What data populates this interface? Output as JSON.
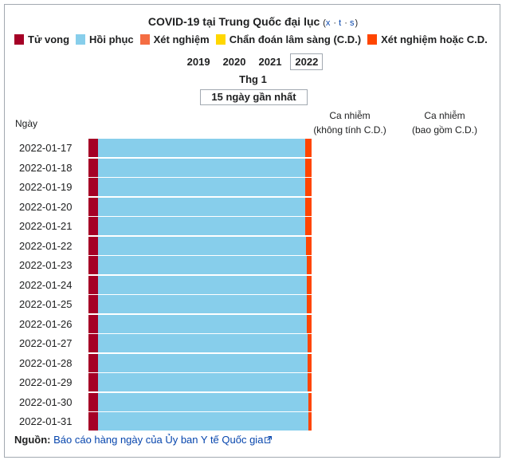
{
  "title": "COVID-19 tại Trung Quốc đại lục",
  "nav": {
    "open": "(",
    "links": [
      "x",
      "t",
      "s"
    ],
    "sep": " · ",
    "close": ")"
  },
  "legend": [
    {
      "label": "Tử vong",
      "color": "#a50026"
    },
    {
      "label": "Hồi phục",
      "color": "#87ceeb"
    },
    {
      "label": "Xét nghiệm",
      "color": "#f46d43"
    },
    {
      "label": "Chẩn đoán lâm sàng (C.D.)",
      "color": "#ffd700"
    },
    {
      "label": "Xét nghiệm hoặc C.D.",
      "color": "#ff4500"
    }
  ],
  "years": [
    "2019",
    "2020",
    "2021",
    "2022"
  ],
  "active_year": "2022",
  "month": "Thg 1",
  "range_label": "15 ngày gần nhất",
  "headers": {
    "day": "Ngày",
    "col1_line1": "Ca nhiễm",
    "col1_line2": "(không tính C.D.)",
    "col2_line1": "Ca nhiễm",
    "col2_line2": "(bao gồm C.D.)"
  },
  "chart_data": {
    "type": "bar",
    "stacked": true,
    "orientation": "horizontal",
    "categories": [
      "2022-01-17",
      "2022-01-18",
      "2022-01-19",
      "2022-01-20",
      "2022-01-21",
      "2022-01-22",
      "2022-01-23",
      "2022-01-24",
      "2022-01-25",
      "2022-01-26",
      "2022-01-27",
      "2022-01-28",
      "2022-01-29",
      "2022-01-30",
      "2022-01-31"
    ],
    "series": [
      {
        "name": "Tử vong",
        "values": [
          4.3,
          4.3,
          4.3,
          4.3,
          4.3,
          4.3,
          4.3,
          4.3,
          4.3,
          4.3,
          4.3,
          4.3,
          4.3,
          4.3,
          4.3
        ]
      },
      {
        "name": "Hồi phục",
        "values": [
          92.8,
          92.7,
          92.9,
          93.0,
          93.0,
          93.2,
          93.4,
          93.5,
          93.6,
          93.6,
          93.8,
          93.9,
          94.0,
          94.1,
          94.2
        ]
      },
      {
        "name": "Xét nghiệm hoặc C.D.",
        "values": [
          2.9,
          3.0,
          2.8,
          2.7,
          2.7,
          2.5,
          2.3,
          2.2,
          2.1,
          2.1,
          1.9,
          1.8,
          1.7,
          1.6,
          1.5
        ]
      }
    ],
    "unit": "%"
  },
  "source": {
    "label": "Nguồn:",
    "link_text": "Báo cáo hàng ngày của Ủy ban Y tế Quốc gia"
  }
}
